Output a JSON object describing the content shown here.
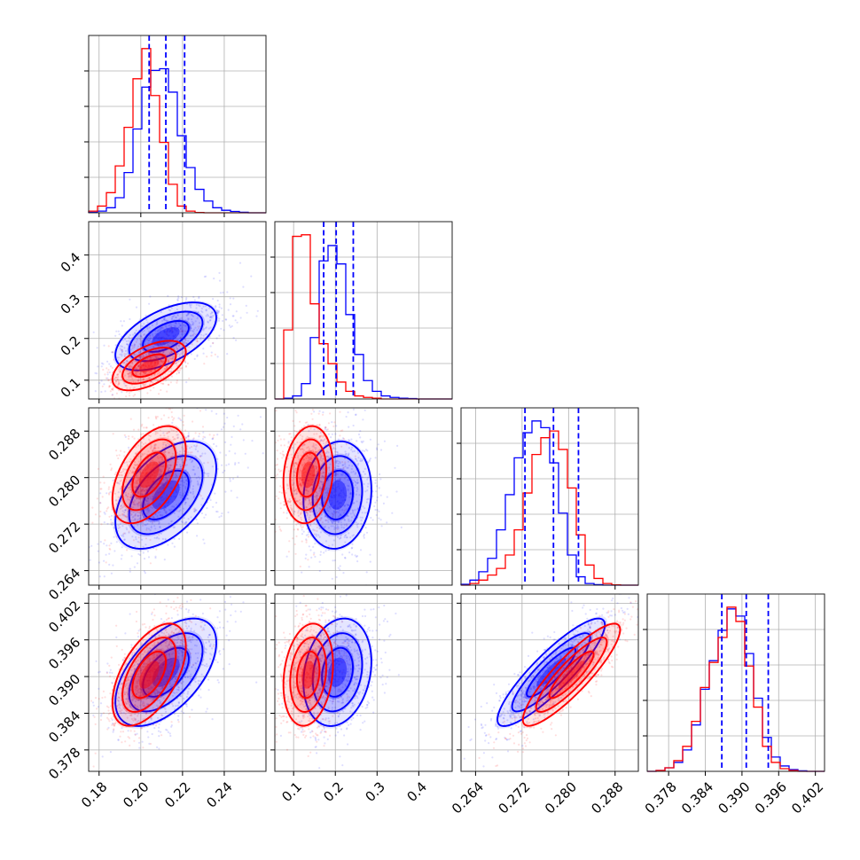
{
  "chart_data": {
    "type": "corner",
    "title": "",
    "grid": true,
    "series": [
      {
        "name": "",
        "color": "#0000ff"
      },
      {
        "name": "",
        "color": "#ff0000"
      }
    ],
    "parameters": [
      {
        "range": [
          0.175,
          0.26
        ],
        "ticks": [
          0.18,
          0.2,
          0.22,
          0.24
        ],
        "tick_labels": [
          "0.18",
          "0.20",
          "0.22",
          "0.24"
        ],
        "quantiles": [
          0.204,
          0.212,
          0.221
        ],
        "hist_bins": [
          0.175,
          0.26,
          20
        ],
        "hist_blue": [
          0.3,
          1.0,
          3.0,
          9.0,
          24.0,
          50.0,
          75.0,
          85.0,
          86.0,
          72.0,
          46.0,
          27.0,
          14.0,
          7.0,
          3.0,
          1.5,
          0.8,
          0.3,
          0.0,
          0.0
        ],
        "hist_red": [
          1.0,
          4.0,
          12.0,
          28.0,
          51.0,
          80.0,
          98.0,
          70.0,
          42.0,
          17.0,
          4.0,
          1.0,
          0.2,
          0.0,
          0.0,
          0.0,
          0.0,
          0.0,
          0.0,
          0.0
        ],
        "mean_blue": 0.212,
        "sd_blue": 0.011,
        "mean_red": 0.204,
        "sd_red": 0.008
      },
      {
        "range": [
          0.055,
          0.48
        ],
        "ticks": [
          0.1,
          0.2,
          0.3,
          0.4
        ],
        "tick_labels": [
          "0.1",
          "0.2",
          "0.3",
          "0.4"
        ],
        "quantiles": [
          0.172,
          0.202,
          0.243
        ],
        "hist_bins": [
          0.055,
          0.48,
          20
        ],
        "hist_blue": [
          0.0,
          0.5,
          2.0,
          10.0,
          40.0,
          90.0,
          100.0,
          88.0,
          55.0,
          29.0,
          12.0,
          5.0,
          2.0,
          1.0,
          0.5,
          0.3,
          0.0,
          0.0,
          0.0,
          0.0
        ],
        "hist_red": [
          0.0,
          45.0,
          106.0,
          107.0,
          62.0,
          36.0,
          23.0,
          11.0,
          5.0,
          2.0,
          1.0,
          0.5,
          0.0,
          0.0,
          0.0,
          0.0,
          0.0,
          0.0,
          0.0,
          0.0
        ],
        "mean_blue": 0.205,
        "sd_blue": 0.037,
        "mean_red": 0.135,
        "sd_red": 0.027
      },
      {
        "range": [
          0.2615,
          0.292
        ],
        "ticks": [
          0.264,
          0.272,
          0.28,
          0.288
        ],
        "tick_labels": [
          "0.264",
          "0.272",
          "0.280",
          "0.288"
        ],
        "quantiles": [
          0.2725,
          0.2774,
          0.2817
        ],
        "hist_bins": [
          0.2615,
          0.292,
          20
        ],
        "hist_blue": [
          0.5,
          3.0,
          8.0,
          16.0,
          33.0,
          54.0,
          76.0,
          91.0,
          98.0,
          94.0,
          73.0,
          43.0,
          18.0,
          5.0,
          1.0,
          0.3,
          0.0,
          0.0,
          0.0,
          0.0
        ],
        "hist_red": [
          0.0,
          1.0,
          3.0,
          6.0,
          10.0,
          18.0,
          33.0,
          55.0,
          78.0,
          88.0,
          92.0,
          81.0,
          58.0,
          30.0,
          12.0,
          4.0,
          1.0,
          0.2,
          0.0,
          0.0
        ],
        "mean_blue": 0.277,
        "sd_blue": 0.0042,
        "mean_red": 0.2805,
        "sd_red": 0.0038
      },
      {
        "range": [
          0.3745,
          0.4035
        ],
        "ticks": [
          0.378,
          0.384,
          0.39,
          0.396,
          0.402
        ],
        "tick_labels": [
          "0.378",
          "0.384",
          "0.390",
          "0.396",
          "0.402"
        ],
        "quantiles": [
          0.3867,
          0.3907,
          0.3943
        ],
        "hist_bins": [
          0.3745,
          0.4035,
          20
        ],
        "hist_blue": [
          0.0,
          0.5,
          2.0,
          5.0,
          12.0,
          26.0,
          46.0,
          62.0,
          79.0,
          91.0,
          87.0,
          66.0,
          41.0,
          19.0,
          8.0,
          3.0,
          1.0,
          0.3,
          0.0,
          0.0
        ],
        "hist_red": [
          0.0,
          0.5,
          2.0,
          6.0,
          14.0,
          28.0,
          47.0,
          61.0,
          75.0,
          92.0,
          84.0,
          59.0,
          36.0,
          14.0,
          5.0,
          1.5,
          0.5,
          0.0,
          0.0,
          0.0
        ],
        "mean_blue": 0.3907,
        "sd_blue": 0.004,
        "mean_red": 0.3903,
        "sd_red": 0.0038
      }
    ],
    "correlations_blue": [
      [
        1.0,
        0.55,
        0.5,
        0.55
      ],
      [
        0.55,
        1.0,
        0.1,
        0.2
      ],
      [
        0.5,
        0.1,
        1.0,
        0.88
      ],
      [
        0.55,
        0.2,
        0.88,
        1.0
      ]
    ],
    "correlations_red": [
      [
        1.0,
        0.55,
        0.5,
        0.55
      ],
      [
        0.55,
        1.0,
        0.15,
        0.2
      ],
      [
        0.5,
        0.15,
        1.0,
        0.88
      ],
      [
        0.55,
        0.2,
        0.88,
        1.0
      ]
    ]
  }
}
